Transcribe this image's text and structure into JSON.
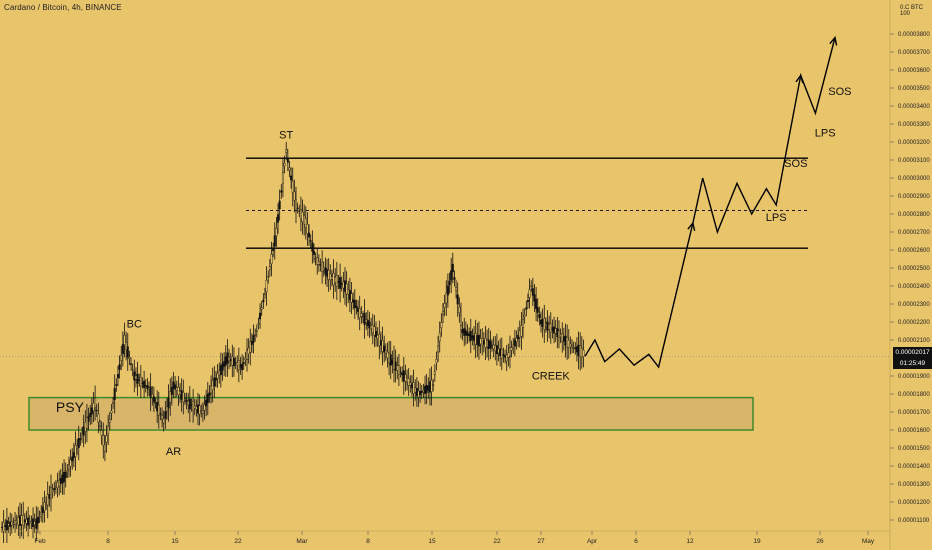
{
  "chart_header": "Cardano / Bitcoin, 4h, BINANCE",
  "axis_corner": "BTC  100",
  "axis_corner_prefix": "0.C",
  "last_price": "0.00002017",
  "countdown": "01:25:49",
  "colors": {
    "background": "#e8c46b",
    "range_zone_fill": "#d9b56a",
    "range_zone_border": "#3c8a2a",
    "candles": "#111111",
    "lines": "#000000"
  },
  "chart_data": {
    "type": "line",
    "title": "Cardano / Bitcoin, 4h, BINANCE",
    "xlabel": "",
    "ylabel": "",
    "ylim": [
      1e-06,
      4e-05
    ],
    "y_ticks": [
      "0.00003800",
      "0.00003700",
      "0.00003600",
      "0.00003500",
      "0.00003400",
      "0.00003300",
      "0.00003200",
      "0.00003100",
      "0.00003000",
      "0.00002900",
      "0.00002800",
      "0.00002700",
      "0.00002600",
      "0.00002500",
      "0.00002400",
      "0.00002300",
      "0.00002200",
      "0.00002100",
      "0.00001900",
      "0.00001800",
      "0.00001700",
      "0.00001600",
      "0.00001500",
      "0.00001400",
      "0.00001300",
      "0.00001200",
      "0.00001100"
    ],
    "x_ticks": [
      "Feb",
      "8",
      "15",
      "22",
      "Mar",
      "8",
      "15",
      "22",
      "27",
      "Apr",
      "6",
      "12",
      "19",
      "26",
      "May"
    ],
    "price_path": [
      {
        "t": 0,
        "p": 1.06e-05
      },
      {
        "t": 4,
        "p": 1.1e-05
      },
      {
        "t": 7,
        "p": 1.08e-05
      },
      {
        "t": 10,
        "p": 1.25e-05
      },
      {
        "t": 13,
        "p": 1.35e-05
      },
      {
        "t": 16,
        "p": 1.55e-05
      },
      {
        "t": 19,
        "p": 1.75e-05
      },
      {
        "t": 21,
        "p": 1.5e-05
      },
      {
        "t": 23,
        "p": 1.8e-05
      },
      {
        "t": 25,
        "p": 2.1e-05
      },
      {
        "t": 27,
        "p": 1.9e-05
      },
      {
        "t": 30,
        "p": 1.83e-05
      },
      {
        "t": 33,
        "p": 1.65e-05
      },
      {
        "t": 35,
        "p": 1.85e-05
      },
      {
        "t": 38,
        "p": 1.75e-05
      },
      {
        "t": 41,
        "p": 1.7e-05
      },
      {
        "t": 43,
        "p": 1.85e-05
      },
      {
        "t": 46,
        "p": 2e-05
      },
      {
        "t": 49,
        "p": 1.95e-05
      },
      {
        "t": 52,
        "p": 2.15e-05
      },
      {
        "t": 54,
        "p": 2.4e-05
      },
      {
        "t": 56,
        "p": 2.7e-05
      },
      {
        "t": 58,
        "p": 3.15e-05
      },
      {
        "t": 60,
        "p": 2.85e-05
      },
      {
        "t": 62,
        "p": 2.75e-05
      },
      {
        "t": 64,
        "p": 2.55e-05
      },
      {
        "t": 67,
        "p": 2.45e-05
      },
      {
        "t": 70,
        "p": 2.4e-05
      },
      {
        "t": 73,
        "p": 2.25e-05
      },
      {
        "t": 76,
        "p": 2.15e-05
      },
      {
        "t": 79,
        "p": 2e-05
      },
      {
        "t": 82,
        "p": 1.9e-05
      },
      {
        "t": 85,
        "p": 1.8e-05
      },
      {
        "t": 88,
        "p": 1.85e-05
      },
      {
        "t": 90,
        "p": 2.25e-05
      },
      {
        "t": 92,
        "p": 2.5e-05
      },
      {
        "t": 94,
        "p": 2.15e-05
      },
      {
        "t": 97,
        "p": 2.1e-05
      },
      {
        "t": 100,
        "p": 2.07e-05
      },
      {
        "t": 103,
        "p": 2e-05
      },
      {
        "t": 106,
        "p": 2.15e-05
      },
      {
        "t": 108,
        "p": 2.4e-05
      },
      {
        "t": 110,
        "p": 2.2e-05
      },
      {
        "t": 113,
        "p": 2.15e-05
      },
      {
        "t": 116,
        "p": 2.07e-05
      },
      {
        "t": 119,
        "p": 2.02e-05
      }
    ],
    "projection_path": [
      {
        "t": 119,
        "p": 2.01e-05
      },
      {
        "t": 121,
        "p": 2.1e-05
      },
      {
        "t": 123,
        "p": 1.98e-05
      },
      {
        "t": 126,
        "p": 2.05e-05
      },
      {
        "t": 129,
        "p": 1.96e-05
      },
      {
        "t": 132,
        "p": 2.02e-05
      },
      {
        "t": 134,
        "p": 1.95e-05
      },
      {
        "t": 141,
        "p": 2.75e-05
      },
      {
        "t": 143,
        "p": 3e-05
      },
      {
        "t": 146,
        "p": 2.7e-05
      },
      {
        "t": 150,
        "p": 2.97e-05
      },
      {
        "t": 153,
        "p": 2.8e-05
      },
      {
        "t": 156,
        "p": 2.94e-05
      },
      {
        "t": 158,
        "p": 2.85e-05
      },
      {
        "t": 163,
        "p": 3.57e-05
      },
      {
        "t": 166,
        "p": 3.36e-05
      },
      {
        "t": 170,
        "p": 3.78e-05
      }
    ],
    "lines": [
      {
        "kind": "solid",
        "price": 3.11e-05
      },
      {
        "kind": "dashed",
        "price": 2.82e-05
      },
      {
        "kind": "solid",
        "price": 2.61e-05
      }
    ],
    "zone": {
      "price_top": 1.78e-05,
      "price_bottom": 1.6e-05
    },
    "annotations": [
      {
        "text": "ST",
        "t": 58,
        "p": 3.22e-05
      },
      {
        "text": "BC",
        "t": 27,
        "p": 2.17e-05
      },
      {
        "text": "AR",
        "t": 35,
        "p": 1.46e-05
      },
      {
        "text": "PSY",
        "t": 11,
        "p": 1.7e-05
      },
      {
        "text": "CREEK",
        "t": 112,
        "p": 1.88e-05
      },
      {
        "text": "LPS",
        "t": 158,
        "p": 2.76e-05
      },
      {
        "text": "SOS",
        "t": 162,
        "p": 3.06e-05
      },
      {
        "text": "LPS",
        "t": 168,
        "p": 3.23e-05
      },
      {
        "text": "SOS",
        "t": 171,
        "p": 3.46e-05
      }
    ]
  }
}
